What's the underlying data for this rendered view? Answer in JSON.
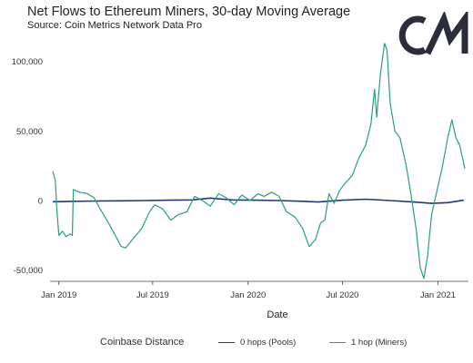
{
  "title": "Net Flows to Ethereum Miners, 30-day Moving Average",
  "subtitle": "Source: Coin Metrics Network Data Pro",
  "logo_text": "CM",
  "legend": {
    "title": "Coinbase Distance",
    "items": [
      {
        "label": "0 hops (Pools)",
        "color": "#1f3a78"
      },
      {
        "label": "1 hop (Miners)",
        "color": "#2a9d80"
      }
    ]
  },
  "chart_data": {
    "type": "line",
    "xlabel": "Date",
    "ylabel": "",
    "x_ticks": [
      "Jan 2019",
      "Jul 2019",
      "Jan 2020",
      "Jul 2020",
      "Jan 2021"
    ],
    "y_ticks": [
      "-50,000",
      "0",
      "50,000",
      "100,000"
    ],
    "y_tick_values": [
      -50000,
      0,
      50000,
      100000
    ],
    "xlim": [
      "2018-12-15",
      "2021-03-01"
    ],
    "ylim": [
      -58000,
      118000
    ],
    "grid": false,
    "series": [
      {
        "name": "0 hops (Pools)",
        "color": "#1f3a78",
        "points": [
          [
            "2018-12-20",
            -800
          ],
          [
            "2019-02-01",
            -500
          ],
          [
            "2019-03-15",
            -300
          ],
          [
            "2019-05-01",
            -200
          ],
          [
            "2019-06-15",
            0
          ],
          [
            "2019-08-01",
            300
          ],
          [
            "2019-09-15",
            500
          ],
          [
            "2019-10-20",
            1800
          ],
          [
            "2019-12-01",
            500
          ],
          [
            "2020-01-15",
            300
          ],
          [
            "2020-03-01",
            0
          ],
          [
            "2020-04-15",
            -500
          ],
          [
            "2020-05-15",
            -1000
          ],
          [
            "2020-07-01",
            300
          ],
          [
            "2020-08-15",
            1000
          ],
          [
            "2020-10-01",
            0
          ],
          [
            "2020-11-15",
            -1000
          ],
          [
            "2020-12-20",
            -2000
          ],
          [
            "2021-01-20",
            -1500
          ],
          [
            "2021-02-20",
            300
          ]
        ]
      },
      {
        "name": "1 hop (Miners)",
        "color": "#2a9d80",
        "points": [
          [
            "2018-12-20",
            21000
          ],
          [
            "2018-12-25",
            15000
          ],
          [
            "2018-12-28",
            -5000
          ],
          [
            "2019-01-01",
            -25000
          ],
          [
            "2019-01-08",
            -22000
          ],
          [
            "2019-01-15",
            -26000
          ],
          [
            "2019-01-22",
            -24000
          ],
          [
            "2019-01-27",
            -25000
          ],
          [
            "2019-01-29",
            8000
          ],
          [
            "2019-02-10",
            6000
          ],
          [
            "2019-02-25",
            5000
          ],
          [
            "2019-03-10",
            2000
          ],
          [
            "2019-03-20",
            -5000
          ],
          [
            "2019-04-05",
            -15000
          ],
          [
            "2019-04-20",
            -25000
          ],
          [
            "2019-05-01",
            -33000
          ],
          [
            "2019-05-10",
            -34000
          ],
          [
            "2019-05-25",
            -27000
          ],
          [
            "2019-06-10",
            -20000
          ],
          [
            "2019-06-25",
            -8000
          ],
          [
            "2019-07-05",
            -3000
          ],
          [
            "2019-07-20",
            -6000
          ],
          [
            "2019-08-05",
            -14000
          ],
          [
            "2019-08-20",
            -10000
          ],
          [
            "2019-09-05",
            -8000
          ],
          [
            "2019-09-20",
            3000
          ],
          [
            "2019-10-05",
            0
          ],
          [
            "2019-10-20",
            -4000
          ],
          [
            "2019-11-05",
            5000
          ],
          [
            "2019-11-20",
            2000
          ],
          [
            "2019-12-05",
            -3000
          ],
          [
            "2019-12-20",
            4000
          ],
          [
            "2020-01-05",
            0
          ],
          [
            "2020-01-20",
            5000
          ],
          [
            "2020-02-01",
            3000
          ],
          [
            "2020-02-15",
            6000
          ],
          [
            "2020-03-01",
            3000
          ],
          [
            "2020-03-15",
            -8000
          ],
          [
            "2020-04-01",
            -12000
          ],
          [
            "2020-04-15",
            -20000
          ],
          [
            "2020-04-28",
            -33000
          ],
          [
            "2020-05-10",
            -28000
          ],
          [
            "2020-05-20",
            -16000
          ],
          [
            "2020-05-28",
            -14000
          ],
          [
            "2020-06-05",
            5000
          ],
          [
            "2020-06-15",
            -2000
          ],
          [
            "2020-06-25",
            7000
          ],
          [
            "2020-07-05",
            12000
          ],
          [
            "2020-07-20",
            18000
          ],
          [
            "2020-08-01",
            30000
          ],
          [
            "2020-08-15",
            40000
          ],
          [
            "2020-08-25",
            55000
          ],
          [
            "2020-09-01",
            80000
          ],
          [
            "2020-09-05",
            60000
          ],
          [
            "2020-09-12",
            90000
          ],
          [
            "2020-09-20",
            113000
          ],
          [
            "2020-09-25",
            108000
          ],
          [
            "2020-10-01",
            70000
          ],
          [
            "2020-10-10",
            50000
          ],
          [
            "2020-10-20",
            45000
          ],
          [
            "2020-11-01",
            25000
          ],
          [
            "2020-11-10",
            5000
          ],
          [
            "2020-11-20",
            -20000
          ],
          [
            "2020-11-28",
            -48000
          ],
          [
            "2020-12-05",
            -56000
          ],
          [
            "2020-12-12",
            -40000
          ],
          [
            "2020-12-20",
            -10000
          ],
          [
            "2021-01-01",
            10000
          ],
          [
            "2021-01-10",
            25000
          ],
          [
            "2021-01-20",
            45000
          ],
          [
            "2021-01-28",
            58000
          ],
          [
            "2021-02-05",
            45000
          ],
          [
            "2021-02-12",
            40000
          ],
          [
            "2021-02-18",
            30000
          ],
          [
            "2021-02-22",
            23000
          ]
        ]
      }
    ]
  }
}
